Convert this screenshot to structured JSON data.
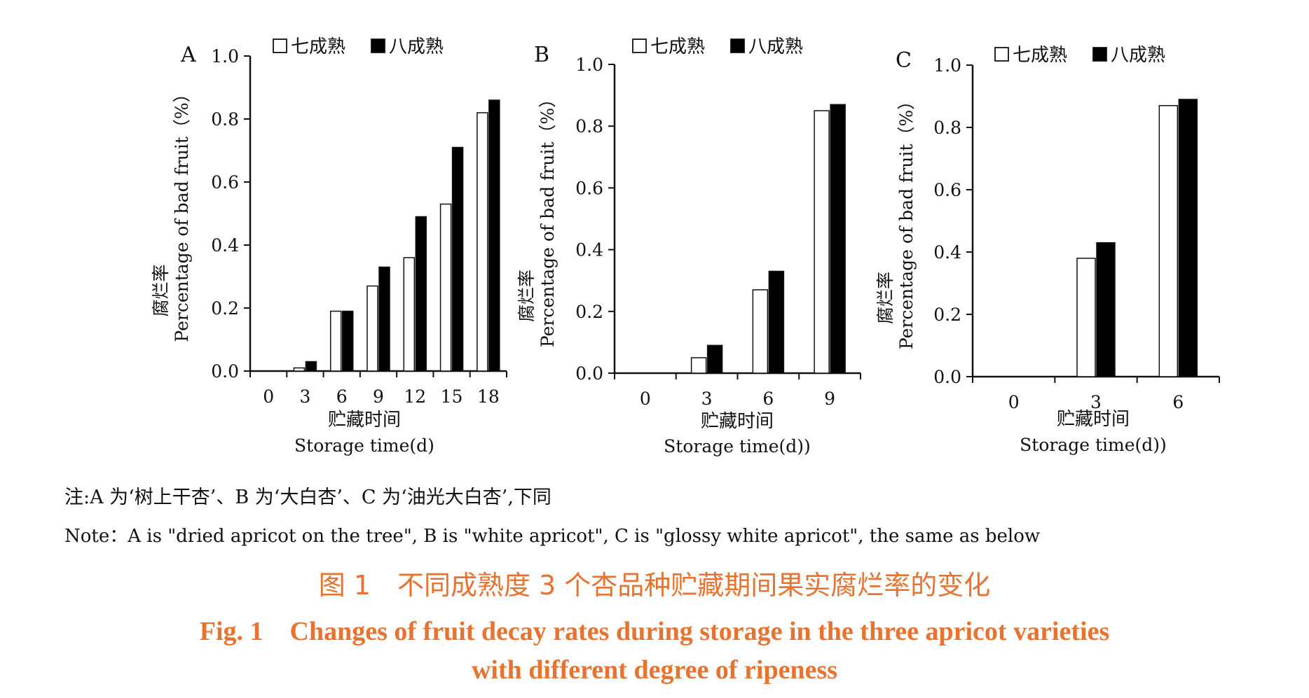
{
  "legend_labels": [
    "七成熟",
    "八成熟"
  ],
  "chart_data": [
    {
      "type": "bar",
      "panel_label": "A",
      "categories": [
        "0",
        "3",
        "6",
        "9",
        "12",
        "15",
        "18"
      ],
      "series": [
        {
          "name": "七成熟",
          "values": [
            0.0,
            0.01,
            0.19,
            0.27,
            0.36,
            0.53,
            0.82
          ]
        },
        {
          "name": "八成熟",
          "values": [
            0.0,
            0.03,
            0.19,
            0.33,
            0.49,
            0.71,
            0.86
          ]
        }
      ],
      "ylim": [
        0,
        1.0
      ],
      "yticks": [
        "0.0",
        "0.2",
        "0.4",
        "0.6",
        "0.8",
        "1.0"
      ],
      "ylabel_cn": "腐烂率",
      "ylabel_en": "Percentage of bad fruit（%）",
      "xlabel_cn": "贮藏时间",
      "xlabel_en": "Storage time(d)",
      "legend": "top"
    },
    {
      "type": "bar",
      "panel_label": "B",
      "categories": [
        "0",
        "3",
        "6",
        "9"
      ],
      "series": [
        {
          "name": "七成熟",
          "values": [
            0.0,
            0.05,
            0.27,
            0.85
          ]
        },
        {
          "name": "八成熟",
          "values": [
            0.0,
            0.09,
            0.33,
            0.87
          ]
        }
      ],
      "ylim": [
        0,
        1.0
      ],
      "yticks": [
        "0.0",
        "0.2",
        "0.4",
        "0.6",
        "0.8",
        "1.0"
      ],
      "ylabel_cn": "腐烂率",
      "ylabel_en": "Percentage of bad fruit（%）",
      "xlabel_cn": "贮藏时间",
      "xlabel_en": "Storage time(d))",
      "legend": "top"
    },
    {
      "type": "bar",
      "panel_label": "C",
      "categories": [
        "0",
        "3",
        "6"
      ],
      "series": [
        {
          "name": "七成熟",
          "values": [
            0.0,
            0.38,
            0.87
          ]
        },
        {
          "name": "八成熟",
          "values": [
            0.0,
            0.43,
            0.89
          ]
        }
      ],
      "ylim": [
        0,
        1.0
      ],
      "yticks": [
        "0.0",
        "0.2",
        "0.4",
        "0.6",
        "0.8",
        "1.0"
      ],
      "ylabel_cn": "腐烂率",
      "ylabel_en": "Percentage of bad fruit（%）",
      "xlabel_cn": "贮藏时间",
      "xlabel_en": "Storage time(d))",
      "legend": "top"
    }
  ],
  "notes": {
    "cn": "注:A 为‘树上干杏’、B 为‘大白杏’、C 为‘油光大白杏’,下同",
    "en": "Note：A is \"dried apricot on the tree\", B is \"white apricot\", C is \"glossy white apricot\", the same as below"
  },
  "caption": {
    "cn": "图 1　不同成熟度 3 个杏品种贮藏期间果实腐烂率的变化",
    "en_line1": "Fig. 1　Changes of fruit decay rates during storage in the three apricot varieties",
    "en_line2": "with different degree of ripeness"
  },
  "colors": {
    "bar_70": "#ffffff",
    "bar_80": "#000000",
    "axis": "#111111",
    "caption": "#e8722f"
  }
}
